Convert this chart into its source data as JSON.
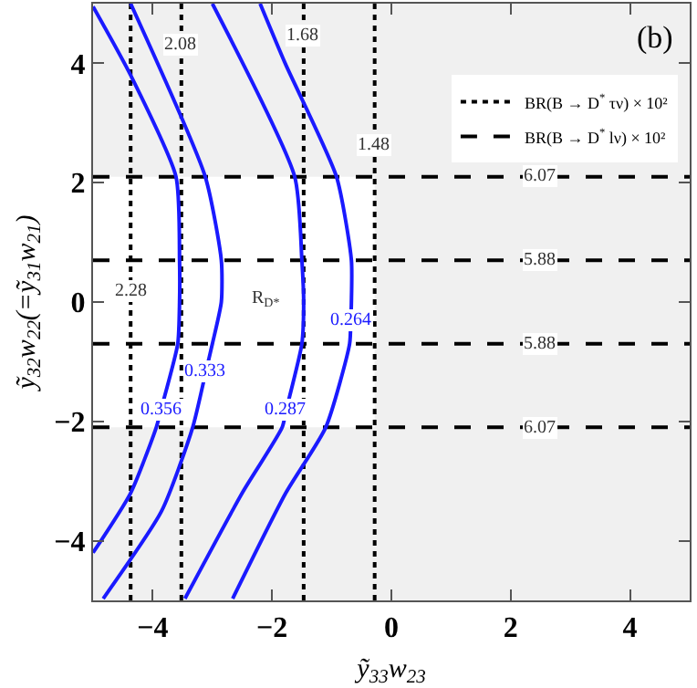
{
  "chart_data": {
    "type": "line",
    "xlabel": "ỹ$_{33}$w$_{23}$",
    "ylabel": "ỹ$_{32}$w$_{22}$(=ỹ$_{31}$w$_{21}$)",
    "xlim": [
      -5,
      5
    ],
    "ylim": [
      -5,
      5
    ],
    "xticks": [
      -4,
      -2,
      0,
      2,
      4
    ],
    "yticks": [
      -4,
      -2,
      0,
      2,
      4
    ],
    "grid": false,
    "legend": "top right",
    "marker": "none",
    "series": [
      {
        "name": "BR(B → D$^{*}$ τν) × 10²",
        "color": "#000000",
        "line_style": "dotted",
        "x": [
          -4.37,
          -4.37
        ],
        "values": [
          -5,
          5
        ]
      },
      {
        "color": "#000000",
        "line_style": "dotted",
        "x": [
          -3.52,
          -3.52
        ],
        "values": [
          -5,
          5
        ]
      },
      {
        "color": "#000000",
        "line_style": "dotted",
        "x": [
          -1.47,
          -1.47
        ],
        "values": [
          -5,
          5
        ]
      },
      {
        "color": "#000000",
        "line_style": "dotted",
        "x": [
          -0.28,
          -0.28
        ],
        "values": [
          -5,
          5
        ]
      },
      {
        "name": "BR(B → D$^{*}$ lν) × 10²",
        "color": "#000000",
        "line_style": "dashed",
        "x": [
          -5,
          5
        ],
        "values": [
          2.1,
          2.1
        ]
      },
      {
        "color": "#000000",
        "line_style": "dashed",
        "x": [
          -5,
          5
        ],
        "values": [
          0.7,
          0.7
        ]
      },
      {
        "color": "#000000",
        "line_style": "dashed",
        "x": [
          -5,
          5
        ],
        "values": [
          -0.7,
          -0.7
        ]
      },
      {
        "color": "#000000",
        "line_style": "dashed",
        "x": [
          -5,
          5
        ],
        "values": [
          -2.1,
          -2.1
        ]
      },
      {
        "color": "#1a1aff",
        "line_style": "solid",
        "x": [
          -5.0,
          -4.37,
          -3.61,
          -3.55,
          -3.55,
          -3.58,
          -3.86,
          -3.94,
          -4.37,
          -5.0
        ],
        "values": [
          4.95,
          3.8,
          2.1,
          0.7,
          0,
          -0.7,
          -1.8,
          -2.1,
          -3.2,
          -4.2
        ]
      },
      {
        "color": "#1a1aff",
        "line_style": "solid",
        "x": [
          -4.37,
          -3.12,
          -2.85,
          -2.85,
          -3.0,
          -3.11,
          -3.33,
          -3.85,
          -4.83
        ],
        "values": [
          5,
          2.1,
          0.7,
          0,
          -0.7,
          -1.17,
          -2.1,
          -3.5,
          -4.97
        ]
      },
      {
        "color": "#1a1aff",
        "line_style": "solid",
        "x": [
          -3.0,
          -1.62,
          -1.5,
          -1.47,
          -1.5,
          -1.76,
          -1.83,
          -2.5,
          -3.46
        ],
        "values": [
          5,
          2.1,
          0.7,
          0,
          -0.7,
          -1.8,
          -2.1,
          -3.2,
          -4.97
        ]
      },
      {
        "color": "#1a1aff",
        "line_style": "solid",
        "x": [
          -2.2,
          -1.78,
          -0.92,
          -0.67,
          -0.67,
          -0.68,
          -0.7,
          -1.1,
          -1.77,
          -2.66
        ],
        "values": [
          5,
          4,
          2.1,
          0.7,
          0,
          -0.3,
          -0.7,
          -2.1,
          -3.2,
          -4.97
        ]
      }
    ],
    "bands": [
      {
        "axis": "x",
        "from": -0.28,
        "to": 5,
        "color": "#f0f0f0"
      },
      {
        "axis": "y",
        "from": 2.1,
        "to": 5,
        "color": "#f0f0f0"
      },
      {
        "axis": "y",
        "from": -5,
        "to": -2.1,
        "color": "#f0f0f0"
      }
    ],
    "annotations": [
      "(b)",
      {
        "text": "2.28",
        "x": -4.37,
        "y": 0.17
      },
      {
        "text": "2.08",
        "x": -3.52,
        "y": 4.3
      },
      {
        "text": "1.68",
        "x": -1.47,
        "y": 4.45
      },
      {
        "text": "1.48",
        "x": -0.28,
        "y": 2.63
      },
      {
        "text": "6.07",
        "x": 2.5,
        "y": 2.1
      },
      {
        "text": "5.88",
        "x": 2.5,
        "y": 0.7
      },
      {
        "text": "5.88",
        "x": 2.5,
        "y": -0.7
      },
      {
        "text": "6.07",
        "x": 2.5,
        "y": -2.1
      },
      {
        "text": "0.356",
        "x": -3.86,
        "y": -1.8
      },
      {
        "text": "0.333",
        "x": -3.11,
        "y": -1.17
      },
      {
        "text": "0.287",
        "x": -1.76,
        "y": -1.8
      },
      {
        "text": "0.264",
        "x": -0.68,
        "y": -0.3
      },
      {
        "text": "R$_{D*}$",
        "x": -2.1,
        "y": 0.05
      }
    ]
  }
}
